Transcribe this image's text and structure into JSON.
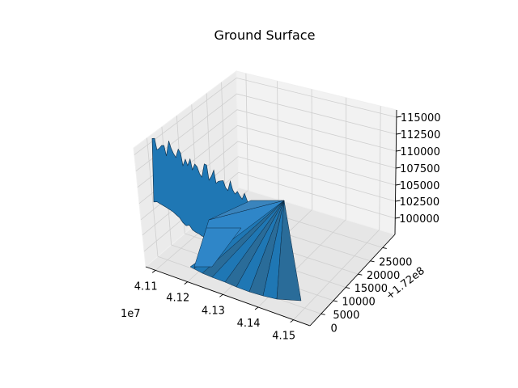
{
  "chart_data": {
    "type": "surface3d",
    "title": "Ground Surface",
    "xlabel": "",
    "ylabel": "",
    "zlabel": "",
    "x_axis": {
      "ticks": [
        "4.11",
        "4.12",
        "4.13",
        "4.14",
        "4.15"
      ],
      "tick_values": [
        4.11,
        4.12,
        4.13,
        4.14,
        4.15
      ],
      "offset_text": "1e7"
    },
    "y_axis": {
      "ticks": [
        "0",
        "5000",
        "10000",
        "15000",
        "20000",
        "25000"
      ],
      "tick_values": [
        0,
        5000,
        10000,
        15000,
        20000,
        25000
      ],
      "offset_text": "+1.72e8"
    },
    "z_axis": {
      "ticks": [
        "100000",
        "102500",
        "105000",
        "107500",
        "110000",
        "112500",
        "115000"
      ],
      "tick_values": [
        100000,
        102500,
        105000,
        107500,
        110000,
        112500,
        115000
      ]
    },
    "grid": true,
    "surface_color": "#1f77b4",
    "edge_color": "#0b2a44"
  }
}
